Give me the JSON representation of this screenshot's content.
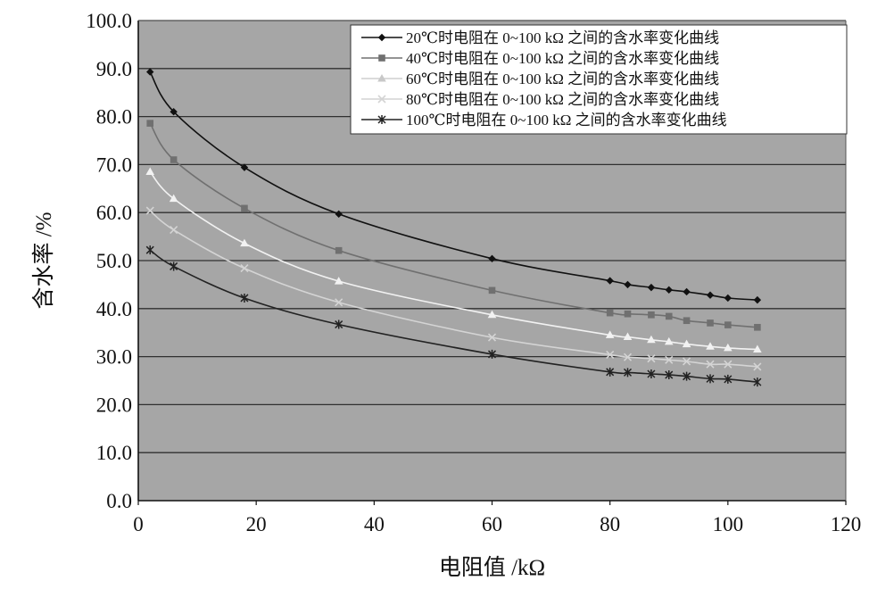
{
  "chart_data": {
    "type": "line",
    "title": "",
    "xlabel": "电阻值 /kΩ",
    "ylabel": "含水率 /%",
    "xlim": [
      0,
      120
    ],
    "ylim": [
      0,
      100
    ],
    "x_ticks": [
      "0",
      "20",
      "40",
      "60",
      "80",
      "100",
      "120"
    ],
    "y_ticks": [
      "0.0",
      "10.0",
      "20.0",
      "30.0",
      "40.0",
      "50.0",
      "60.0",
      "70.0",
      "80.0",
      "90.0",
      "100.0"
    ],
    "grid": "horizontal",
    "legend_position": "top-right",
    "colors": {
      "plot_background": "#a6a6a6",
      "grid": "#303030"
    },
    "series": [
      {
        "name": "20℃时电阻在 0~100 kΩ 之间的含水率变化曲线",
        "marker": "diamond",
        "color": "#111111",
        "points": [
          [
            2,
            89.3
          ],
          [
            6,
            81.0
          ],
          [
            18,
            69.4
          ],
          [
            34,
            59.7
          ],
          [
            60,
            50.4
          ],
          [
            80,
            45.8
          ],
          [
            83,
            45.0
          ],
          [
            87,
            44.4
          ],
          [
            90,
            43.9
          ],
          [
            93,
            43.5
          ],
          [
            97,
            42.8
          ],
          [
            100,
            42.2
          ],
          [
            105,
            41.8
          ]
        ]
      },
      {
        "name": "40℃时电阻在 0~100 kΩ 之间的含水率变化曲线",
        "marker": "square",
        "color": "#707070",
        "points": [
          [
            2,
            78.6
          ],
          [
            6,
            71.0
          ],
          [
            18,
            60.9
          ],
          [
            34,
            52.1
          ],
          [
            60,
            43.8
          ],
          [
            80,
            39.1
          ],
          [
            83,
            38.9
          ],
          [
            87,
            38.7
          ],
          [
            90,
            38.4
          ],
          [
            93,
            37.5
          ],
          [
            97,
            37.0
          ],
          [
            100,
            36.6
          ],
          [
            105,
            36.1
          ]
        ]
      },
      {
        "name": "60℃时电阻在 0~100 kΩ 之间的含水率变化曲线",
        "marker": "triangle",
        "color": "#f2f2f2",
        "points": [
          [
            2,
            68.5
          ],
          [
            6,
            62.9
          ],
          [
            18,
            53.6
          ],
          [
            34,
            45.7
          ],
          [
            60,
            38.7
          ],
          [
            80,
            34.5
          ],
          [
            83,
            34.1
          ],
          [
            87,
            33.5
          ],
          [
            90,
            33.1
          ],
          [
            93,
            32.6
          ],
          [
            97,
            32.1
          ],
          [
            100,
            31.8
          ],
          [
            105,
            31.5
          ]
        ]
      },
      {
        "name": "80℃时电阻在 0~100 kΩ 之间的含水率变化曲线",
        "marker": "x",
        "color": "#d4d4d4",
        "points": [
          [
            2,
            60.4
          ],
          [
            6,
            56.4
          ],
          [
            18,
            48.4
          ],
          [
            34,
            41.3
          ],
          [
            60,
            34.0
          ],
          [
            80,
            30.4
          ],
          [
            83,
            29.9
          ],
          [
            87,
            29.6
          ],
          [
            90,
            29.3
          ],
          [
            93,
            29.0
          ],
          [
            97,
            28.4
          ],
          [
            100,
            28.4
          ],
          [
            105,
            27.9
          ]
        ]
      },
      {
        "name": "100℃时电阻在 0~100 kΩ 之间的含水率变化曲线",
        "marker": "star",
        "color": "#222222",
        "points": [
          [
            2,
            52.2
          ],
          [
            6,
            48.8
          ],
          [
            18,
            42.2
          ],
          [
            34,
            36.7
          ],
          [
            60,
            30.5
          ],
          [
            80,
            26.8
          ],
          [
            83,
            26.7
          ],
          [
            87,
            26.4
          ],
          [
            90,
            26.2
          ],
          [
            93,
            25.9
          ],
          [
            97,
            25.4
          ],
          [
            100,
            25.3
          ],
          [
            105,
            24.7
          ]
        ]
      }
    ]
  }
}
